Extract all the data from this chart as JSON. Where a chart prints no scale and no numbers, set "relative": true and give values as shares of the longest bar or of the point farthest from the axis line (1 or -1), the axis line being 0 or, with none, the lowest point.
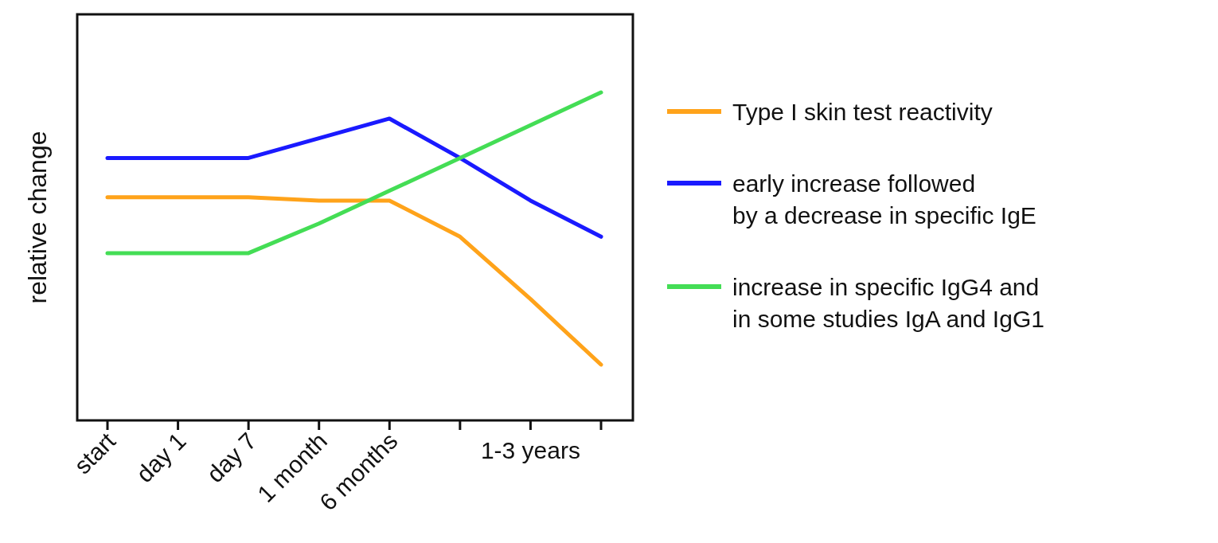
{
  "chart_data": {
    "type": "line",
    "ylabel": "relative change",
    "relative": true,
    "legend": "right",
    "categories": [
      "start",
      "day 1",
      "day 7",
      "1 month",
      "6 months",
      null,
      "1-3 years",
      null
    ],
    "series": [
      {
        "name": "Type I skin test reactivity",
        "color": "#ffa31a",
        "values": [
          0.68,
          0.68,
          0.68,
          0.67,
          0.67,
          0.56,
          0.37,
          0.17
        ]
      },
      {
        "name": "early increase followed\nby a decrease in specific IgE",
        "color": "#1a1aff",
        "values": [
          0.8,
          0.8,
          0.8,
          0.86,
          0.92,
          0.8,
          0.67,
          0.56
        ]
      },
      {
        "name": "increase in specific IgG4 and\nin some studies IgA and IgG1",
        "color": "#44dd55",
        "values": [
          0.51,
          0.51,
          0.51,
          0.6,
          0.7,
          0.8,
          0.9,
          1
        ]
      }
    ]
  }
}
